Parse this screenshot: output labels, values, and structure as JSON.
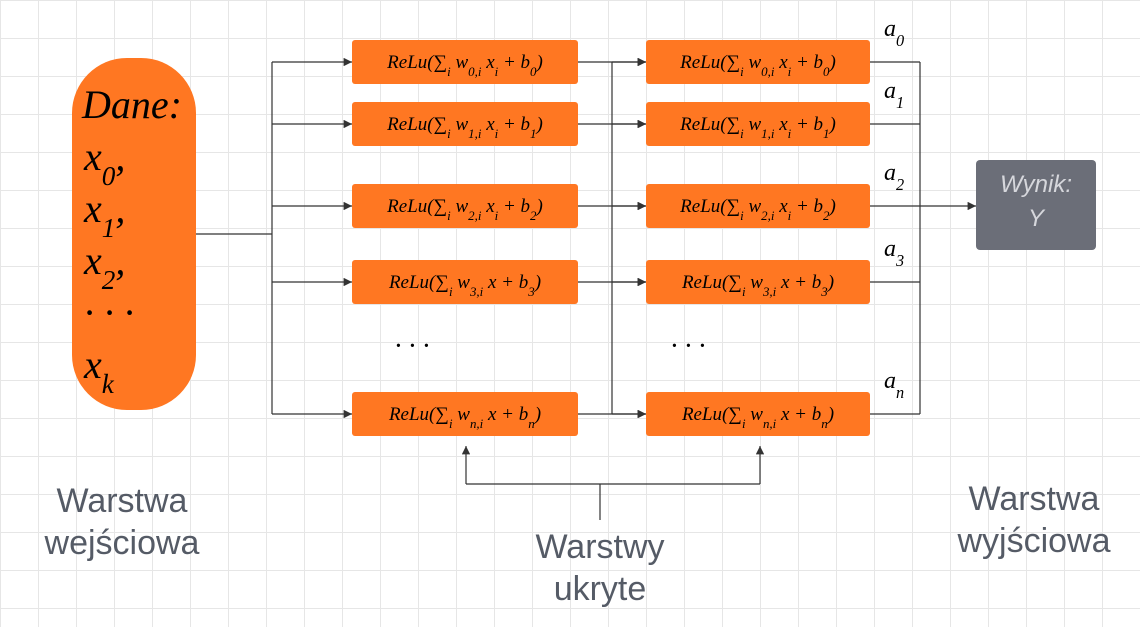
{
  "input": {
    "title": "Dane:",
    "items": [
      [
        "x",
        "0",
        ","
      ],
      [
        "x",
        "1",
        ","
      ],
      [
        "x",
        "2",
        ","
      ],
      [
        "· · ·"
      ],
      [
        "x",
        "k"
      ]
    ]
  },
  "hidden_1": [
    [
      "ReLu(∑",
      "i",
      " w",
      "0,i",
      " x",
      "i",
      " + b",
      "0",
      ")"
    ],
    [
      "ReLu(∑",
      "i",
      " w",
      "1,i",
      " x",
      "i",
      " + b",
      "1",
      ")"
    ],
    [
      "ReLu(∑",
      "i",
      " w",
      "2,i",
      " x",
      "i",
      " + b",
      "2",
      ")"
    ],
    [
      "ReLu(∑",
      "i",
      " w",
      "3,i",
      " x + b",
      "3",
      ")"
    ],
    [
      "ReLu(∑",
      "i",
      " w",
      "n,i",
      " x + b",
      "n",
      ")"
    ]
  ],
  "hidden_2": [
    [
      "ReLu(∑",
      "i",
      " w",
      "0,i",
      " x",
      "i",
      " + b",
      "0",
      ")"
    ],
    [
      "ReLu(∑",
      "i",
      " w",
      "1,i",
      " x",
      "i",
      " + b",
      "1",
      ")"
    ],
    [
      "ReLu(∑",
      "i",
      " w",
      "2,i",
      " x",
      "i",
      " + b",
      "2",
      ")"
    ],
    [
      "ReLu(∑",
      "i",
      " w",
      "3,i",
      " x + b",
      "3",
      ")"
    ],
    [
      "ReLu(∑",
      "i",
      " w",
      "n,i",
      " x + b",
      "n",
      ")"
    ]
  ],
  "ellipsis_1": "· · ·",
  "ellipsis_2": "· · ·",
  "activations": [
    [
      "a",
      "0"
    ],
    [
      "a",
      "1"
    ],
    [
      "a",
      "2"
    ],
    [
      "a",
      "3"
    ],
    [
      "a",
      "n"
    ]
  ],
  "output": {
    "title": "Wynik:",
    "value": "Y"
  },
  "layer_labels": {
    "input": [
      "Warstwa",
      "wejściowa"
    ],
    "hidden": [
      "Warstwy",
      "ukryte"
    ],
    "output": [
      "Warstwa",
      "wyjściowa"
    ]
  }
}
